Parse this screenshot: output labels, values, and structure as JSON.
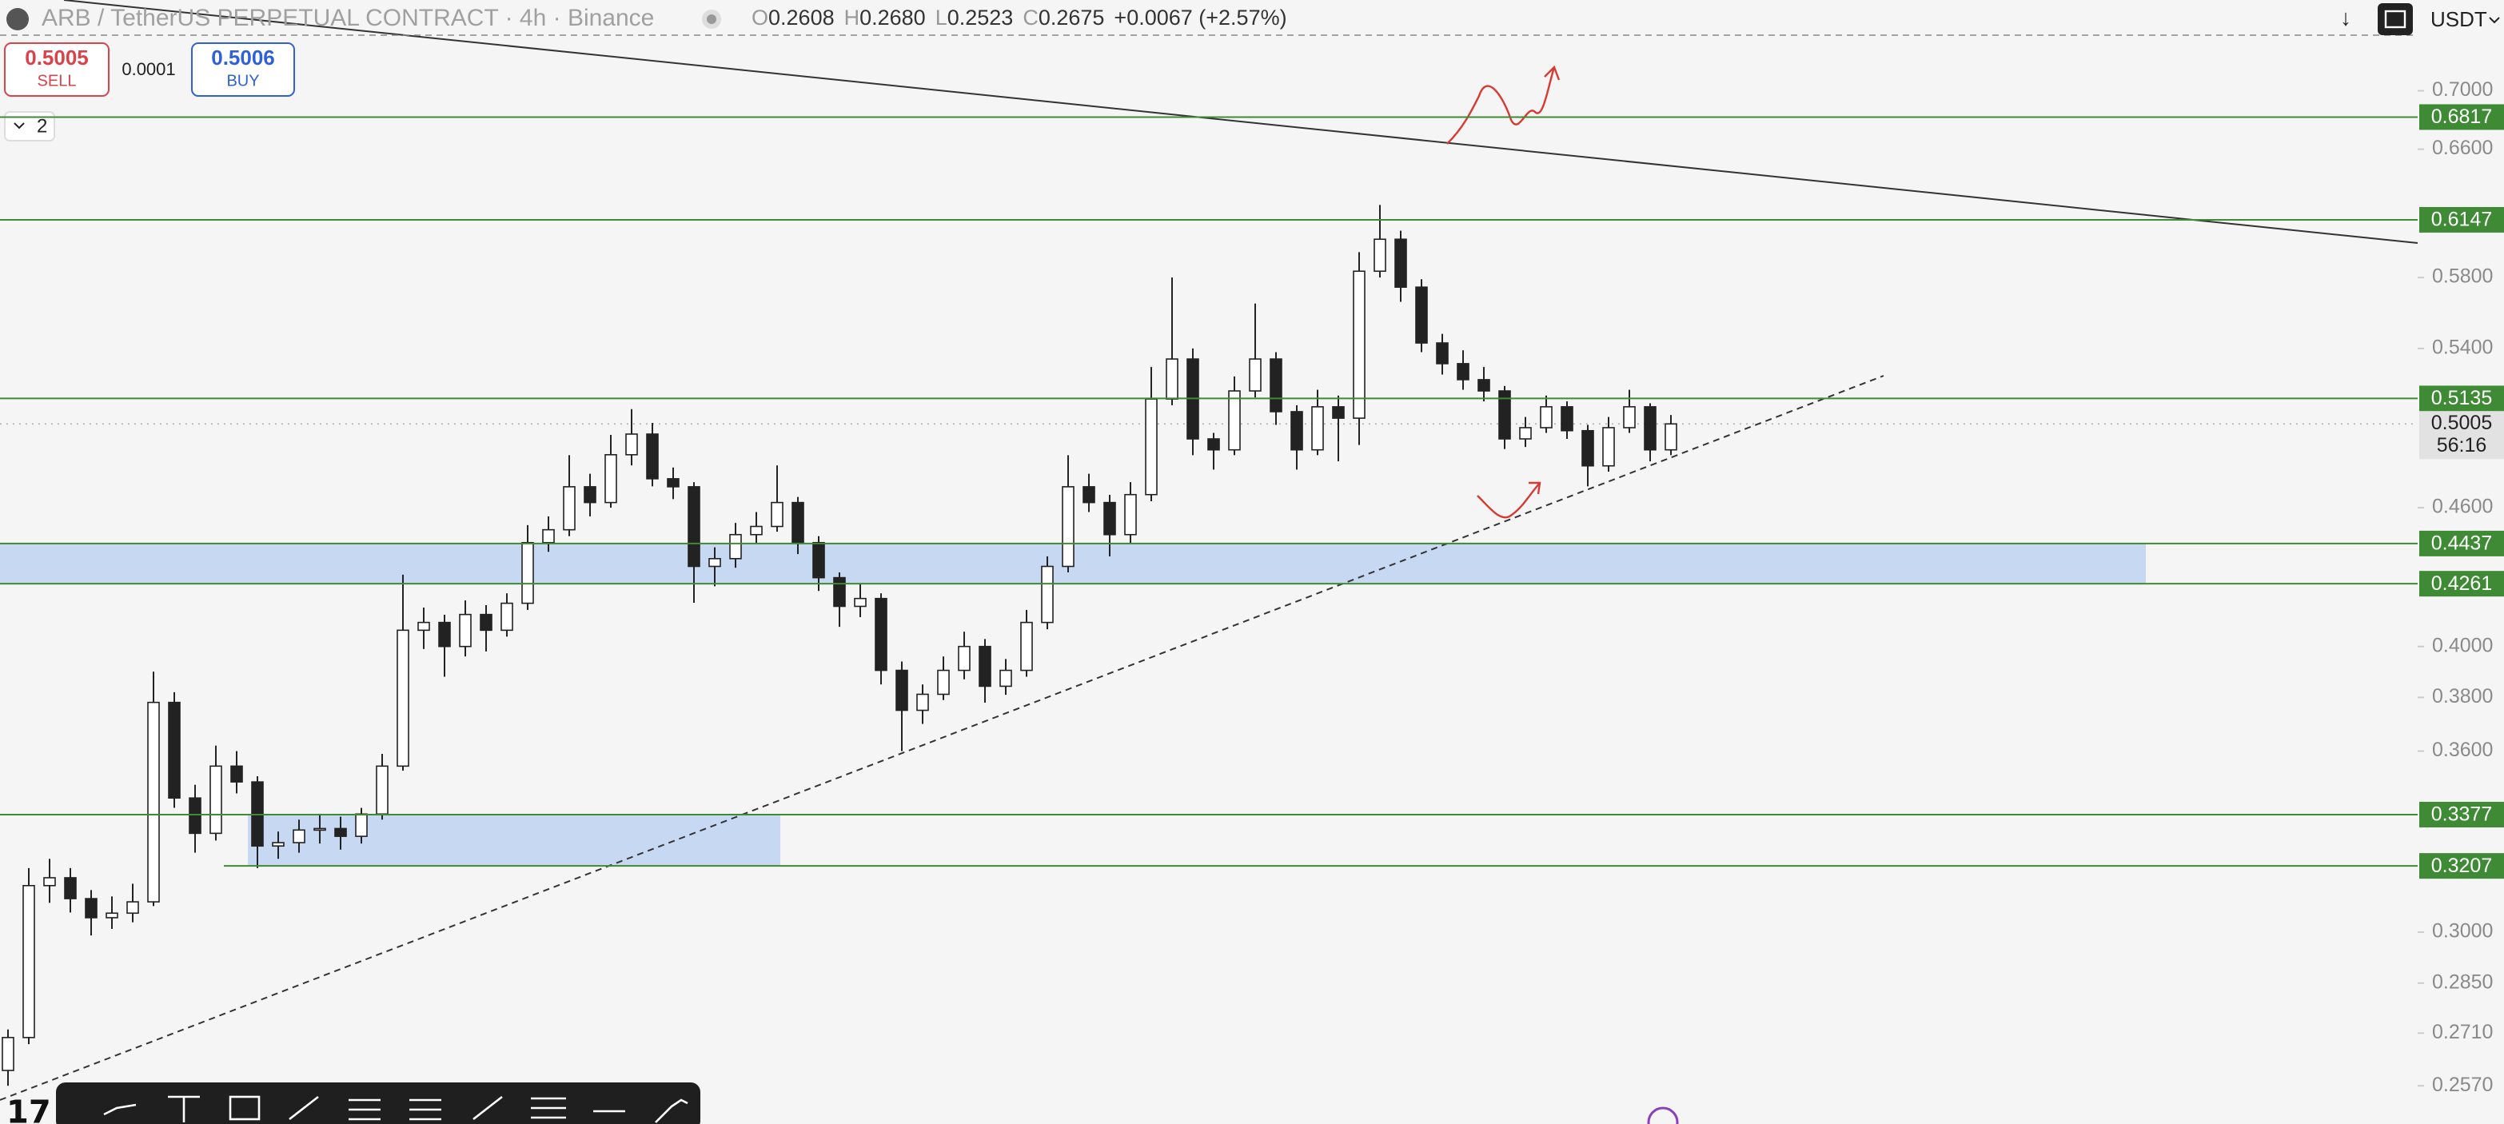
{
  "header": {
    "symbol": "ARB / TetherUS PERPETUAL CONTRACT · 4h · Binance",
    "ohlc": [
      {
        "label": "O",
        "value": "0.2608"
      },
      {
        "label": "H",
        "value": "0.2680"
      },
      {
        "label": "L",
        "value": "0.2523"
      },
      {
        "label": "C",
        "value": "0.2675"
      }
    ],
    "change": "+0.0067 (+2.57%)",
    "currency": "USDT"
  },
  "trade": {
    "sell_price": "0.5005",
    "sell_label": "SELL",
    "spread": "0.0001",
    "buy_price": "0.5006",
    "buy_label": "BUY"
  },
  "indicators_toggle": "2",
  "chart_data": {
    "type": "candlestick",
    "log_scale": true,
    "ylim": [
      0.2473,
      0.767
    ],
    "yticks": [
      {
        "value": 0.7,
        "label": "0.7000"
      },
      {
        "value": 0.66,
        "label": "0.6600"
      },
      {
        "value": 0.58,
        "label": "0.5800"
      },
      {
        "value": 0.54,
        "label": "0.5400"
      },
      {
        "value": 0.46,
        "label": "0.4600"
      },
      {
        "value": 0.4,
        "label": "0.4000"
      },
      {
        "value": 0.38,
        "label": "0.3800"
      },
      {
        "value": 0.36,
        "label": "0.3600"
      },
      {
        "value": 0.3,
        "label": "0.3000"
      },
      {
        "value": 0.285,
        "label": "0.2850"
      },
      {
        "value": 0.271,
        "label": "0.2710"
      },
      {
        "value": 0.257,
        "label": "0.2570"
      }
    ],
    "candle_color": "#222222",
    "candles": [
      [
        0.261,
        0.272,
        0.257,
        0.2698
      ],
      [
        0.2698,
        0.32,
        0.268,
        0.3144
      ],
      [
        0.3144,
        0.323,
        0.309,
        0.3169
      ],
      [
        0.3169,
        0.32,
        0.306,
        0.3103
      ],
      [
        0.3103,
        0.313,
        0.299,
        0.3044
      ],
      [
        0.3044,
        0.311,
        0.301,
        0.3058
      ],
      [
        0.3058,
        0.315,
        0.303,
        0.3093
      ],
      [
        0.3093,
        0.39,
        0.308,
        0.3781
      ],
      [
        0.3781,
        0.382,
        0.34,
        0.3434
      ],
      [
        0.3434,
        0.348,
        0.325,
        0.3314
      ],
      [
        0.3314,
        0.362,
        0.329,
        0.3546
      ],
      [
        0.3546,
        0.36,
        0.345,
        0.349
      ],
      [
        0.349,
        0.351,
        0.32,
        0.3272
      ],
      [
        0.3272,
        0.332,
        0.323,
        0.3283
      ],
      [
        0.3283,
        0.336,
        0.325,
        0.3325
      ],
      [
        0.3325,
        0.338,
        0.328,
        0.333
      ],
      [
        0.333,
        0.337,
        0.326,
        0.3304
      ],
      [
        0.3304,
        0.34,
        0.328,
        0.3379
      ],
      [
        0.3379,
        0.359,
        0.336,
        0.3546
      ],
      [
        0.3546,
        0.43,
        0.353,
        0.4066
      ],
      [
        0.4066,
        0.416,
        0.399,
        0.4098
      ],
      [
        0.4098,
        0.413,
        0.388,
        0.4
      ],
      [
        0.4,
        0.419,
        0.396,
        0.4131
      ],
      [
        0.4131,
        0.417,
        0.398,
        0.4066
      ],
      [
        0.4066,
        0.422,
        0.404,
        0.4178
      ],
      [
        0.4178,
        0.452,
        0.415,
        0.4441
      ],
      [
        0.4441,
        0.456,
        0.44,
        0.4499
      ],
      [
        0.4499,
        0.485,
        0.447,
        0.4698
      ],
      [
        0.4698,
        0.476,
        0.456,
        0.4624
      ],
      [
        0.4624,
        0.495,
        0.46,
        0.4852
      ],
      [
        0.4852,
        0.508,
        0.48,
        0.4954
      ],
      [
        0.4954,
        0.501,
        0.47,
        0.4736
      ],
      [
        0.4736,
        0.479,
        0.464,
        0.4698
      ],
      [
        0.4698,
        0.472,
        0.418,
        0.4336
      ],
      [
        0.4336,
        0.442,
        0.425,
        0.437
      ],
      [
        0.437,
        0.453,
        0.433,
        0.4477
      ],
      [
        0.4477,
        0.458,
        0.444,
        0.4514
      ],
      [
        0.4514,
        0.48,
        0.449,
        0.4624
      ],
      [
        0.4624,
        0.465,
        0.439,
        0.4441
      ],
      [
        0.4441,
        0.447,
        0.423,
        0.4287
      ],
      [
        0.4287,
        0.431,
        0.408,
        0.4165
      ],
      [
        0.4165,
        0.426,
        0.412,
        0.4198
      ],
      [
        0.4198,
        0.422,
        0.385,
        0.3905
      ],
      [
        0.3905,
        0.394,
        0.36,
        0.3751
      ],
      [
        0.3751,
        0.385,
        0.37,
        0.3812
      ],
      [
        0.3812,
        0.396,
        0.379,
        0.3905
      ],
      [
        0.3905,
        0.406,
        0.387,
        0.4
      ],
      [
        0.4,
        0.403,
        0.378,
        0.3843
      ],
      [
        0.3843,
        0.395,
        0.381,
        0.3905
      ],
      [
        0.3905,
        0.415,
        0.388,
        0.4098
      ],
      [
        0.4098,
        0.438,
        0.407,
        0.4336
      ],
      [
        0.4336,
        0.485,
        0.431,
        0.4698
      ],
      [
        0.4698,
        0.476,
        0.458,
        0.4624
      ],
      [
        0.4624,
        0.466,
        0.438,
        0.4477
      ],
      [
        0.4477,
        0.472,
        0.444,
        0.4661
      ],
      [
        0.4661,
        0.53,
        0.463,
        0.5132
      ],
      [
        0.5132,
        0.58,
        0.51,
        0.5343
      ],
      [
        0.5343,
        0.54,
        0.485,
        0.493
      ],
      [
        0.493,
        0.496,
        0.478,
        0.4876
      ],
      [
        0.4876,
        0.525,
        0.485,
        0.5174
      ],
      [
        0.5174,
        0.565,
        0.514,
        0.5343
      ],
      [
        0.5343,
        0.538,
        0.5,
        0.5067
      ],
      [
        0.5067,
        0.51,
        0.478,
        0.4876
      ],
      [
        0.4876,
        0.518,
        0.485,
        0.5092
      ],
      [
        0.5092,
        0.515,
        0.482,
        0.5034
      ],
      [
        0.5034,
        0.595,
        0.49,
        0.5837
      ],
      [
        0.5837,
        0.624,
        0.58,
        0.6028
      ],
      [
        0.6028,
        0.608,
        0.566,
        0.5744
      ],
      [
        0.5744,
        0.579,
        0.538,
        0.543
      ],
      [
        0.543,
        0.548,
        0.526,
        0.5318
      ],
      [
        0.5318,
        0.539,
        0.518,
        0.5233
      ],
      [
        0.5233,
        0.53,
        0.512,
        0.5174
      ],
      [
        0.5174,
        0.52,
        0.488,
        0.493
      ],
      [
        0.493,
        0.504,
        0.489,
        0.4986
      ],
      [
        0.4986,
        0.515,
        0.496,
        0.5092
      ],
      [
        0.5092,
        0.512,
        0.493,
        0.4971
      ],
      [
        0.4971,
        0.5,
        0.47,
        0.4798
      ],
      [
        0.4798,
        0.504,
        0.477,
        0.4986
      ],
      [
        0.4986,
        0.518,
        0.496,
        0.5092
      ],
      [
        0.5092,
        0.511,
        0.482,
        0.4876
      ],
      [
        0.4876,
        0.505,
        0.485,
        0.5005
      ]
    ],
    "levels": [
      0.6817,
      0.6147,
      0.5135,
      0.4437,
      0.4261,
      0.3377,
      0.3207
    ],
    "level_color": "#3f8a34",
    "zone_color": "#c6d8f2",
    "current_price": 0.5005,
    "countdown": "56:16"
  }
}
